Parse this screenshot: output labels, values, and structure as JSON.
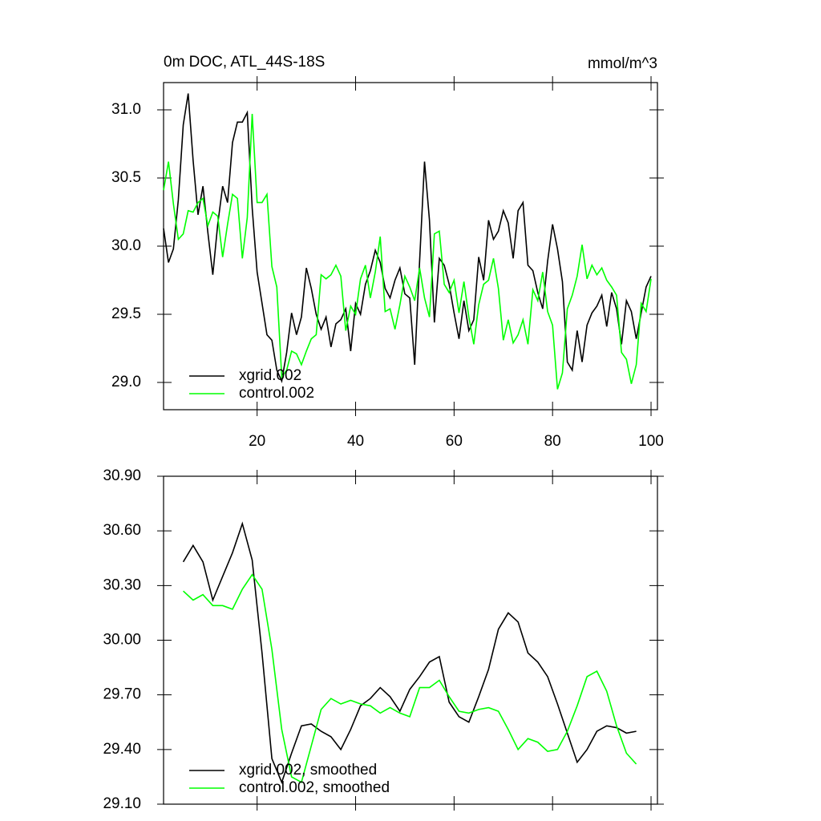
{
  "chart_data": [
    {
      "type": "line",
      "title": "0m DOC, ATL_44S-18S",
      "units": "mmol/m^3",
      "x": [
        1,
        2,
        3,
        4,
        5,
        6,
        7,
        8,
        9,
        10,
        11,
        12,
        13,
        14,
        15,
        16,
        17,
        18,
        19,
        20,
        21,
        22,
        23,
        24,
        25,
        26,
        27,
        28,
        29,
        30,
        31,
        32,
        33,
        34,
        35,
        36,
        37,
        38,
        39,
        40,
        41,
        42,
        43,
        44,
        45,
        46,
        47,
        48,
        49,
        50,
        51,
        52,
        53,
        54,
        55,
        56,
        57,
        58,
        59,
        60,
        61,
        62,
        63,
        64,
        65,
        66,
        67,
        68,
        69,
        70,
        71,
        72,
        73,
        74,
        75,
        76,
        77,
        78,
        79,
        80,
        81,
        82,
        83,
        84,
        85,
        86,
        87,
        88,
        89,
        90,
        91,
        92,
        93,
        94,
        95,
        96,
        97,
        98,
        99,
        100
      ],
      "series": [
        {
          "name": "xgrid.002",
          "color": "#000000",
          "values": [
            30.13,
            29.88,
            29.98,
            30.34,
            30.89,
            31.12,
            30.63,
            30.23,
            30.44,
            30.1,
            29.79,
            30.16,
            30.44,
            30.32,
            30.76,
            30.91,
            30.91,
            30.98,
            30.28,
            29.81,
            29.58,
            29.35,
            29.31,
            29.09,
            29.01,
            29.22,
            29.51,
            29.35,
            29.48,
            29.84,
            29.69,
            29.5,
            29.39,
            29.48,
            29.26,
            29.43,
            29.46,
            29.54,
            29.23,
            29.58,
            29.5,
            29.72,
            29.82,
            29.97,
            29.88,
            29.69,
            29.62,
            29.75,
            29.84,
            29.65,
            29.62,
            29.13,
            29.89,
            30.62,
            30.19,
            29.44,
            29.91,
            29.86,
            29.72,
            29.51,
            29.32,
            29.6,
            29.38,
            29.46,
            29.92,
            29.75,
            30.19,
            30.05,
            30.11,
            30.26,
            30.17,
            29.91,
            30.26,
            30.32,
            29.86,
            29.82,
            29.66,
            29.54,
            29.89,
            30.16,
            29.98,
            29.74,
            29.15,
            29.09,
            29.38,
            29.15,
            29.42,
            29.51,
            29.56,
            29.64,
            29.41,
            29.66,
            29.54,
            29.28,
            29.6,
            29.52,
            29.32,
            29.51,
            29.7,
            29.78
          ]
        },
        {
          "name": "control.002",
          "color": "#00ff00",
          "values": [
            30.41,
            30.62,
            30.31,
            30.05,
            30.09,
            30.26,
            30.25,
            30.32,
            30.35,
            30.15,
            30.25,
            30.22,
            29.92,
            30.16,
            30.38,
            30.35,
            29.91,
            30.21,
            30.97,
            30.32,
            30.32,
            30.38,
            29.85,
            29.7,
            29.04,
            29.09,
            29.23,
            29.21,
            29.13,
            29.23,
            29.32,
            29.35,
            29.79,
            29.76,
            29.79,
            29.86,
            29.78,
            29.38,
            29.56,
            29.5,
            29.76,
            29.86,
            29.62,
            29.81,
            30.07,
            29.52,
            29.54,
            29.39,
            29.57,
            29.78,
            29.7,
            29.6,
            29.84,
            29.62,
            29.48,
            30.09,
            30.11,
            29.72,
            29.66,
            29.75,
            29.51,
            29.74,
            29.48,
            29.28,
            29.57,
            29.72,
            29.75,
            29.91,
            29.69,
            29.31,
            29.46,
            29.29,
            29.35,
            29.46,
            29.28,
            29.68,
            29.6,
            29.81,
            29.52,
            29.42,
            28.95,
            29.07,
            29.54,
            29.64,
            29.78,
            30.01,
            29.76,
            29.86,
            29.79,
            29.84,
            29.75,
            29.7,
            29.64,
            29.22,
            29.17,
            28.99,
            29.13,
            29.58,
            29.52,
            29.76
          ]
        }
      ],
      "xlim": [
        1,
        101.3
      ],
      "xticks": [
        20,
        40,
        60,
        80,
        100
      ],
      "ylim": [
        28.8,
        31.2
      ],
      "yticks": [
        {
          "value": 29,
          "label": "29.0"
        },
        29.5,
        {
          "value": 30,
          "label": "30.0"
        },
        30.5,
        {
          "value": 31,
          "label": "31.0"
        }
      ],
      "legend": "lower left"
    },
    {
      "type": "line",
      "x": [
        5,
        7,
        9,
        11,
        13,
        15,
        17,
        19,
        21,
        23,
        25,
        27,
        29,
        31,
        33,
        35,
        37,
        39,
        41,
        43,
        45,
        47,
        49,
        51,
        53,
        55,
        57,
        59,
        61,
        63,
        65,
        67,
        69,
        71,
        73,
        75,
        77,
        79,
        81,
        83,
        85,
        87,
        89,
        91,
        93,
        95,
        97
      ],
      "series": [
        {
          "name": "xgrid.002, smoothed",
          "color": "#000000",
          "values": [
            30.43,
            30.52,
            30.43,
            30.22,
            30.35,
            30.48,
            30.64,
            30.44,
            29.93,
            29.35,
            29.22,
            29.38,
            29.53,
            29.54,
            29.5,
            29.47,
            29.4,
            29.51,
            29.64,
            29.68,
            29.74,
            29.69,
            29.61,
            29.73,
            29.8,
            29.88,
            29.91,
            29.66,
            29.58,
            29.55,
            29.69,
            29.84,
            30.06,
            30.15,
            30.1,
            29.93,
            29.88,
            29.8,
            29.65,
            29.49,
            29.33,
            29.4,
            29.5,
            29.53,
            29.52,
            29.49,
            29.5
          ]
        },
        {
          "name": "control.002, smoothed",
          "color": "#00ff00",
          "values": [
            30.27,
            30.22,
            30.25,
            30.19,
            30.19,
            30.17,
            30.28,
            30.36,
            30.28,
            29.95,
            29.51,
            29.25,
            29.22,
            29.42,
            29.62,
            29.68,
            29.65,
            29.67,
            29.65,
            29.64,
            29.6,
            29.63,
            29.6,
            29.58,
            29.74,
            29.74,
            29.78,
            29.69,
            29.61,
            29.6,
            29.62,
            29.63,
            29.61,
            29.51,
            29.4,
            29.46,
            29.44,
            29.39,
            29.4,
            29.5,
            29.64,
            29.8,
            29.83,
            29.72,
            29.53,
            29.38,
            29.32
          ]
        }
      ],
      "xlim": [
        1,
        101.3
      ],
      "xticks": [
        20,
        40,
        60,
        80,
        100
      ],
      "ylim": [
        29.1,
        30.9
      ],
      "yticks": [
        {
          "value": 29.1,
          "label": "29.10"
        },
        {
          "value": 29.4,
          "label": "29.40"
        },
        {
          "value": 29.7,
          "label": "29.70"
        },
        {
          "value": 30,
          "label": "30.00"
        },
        {
          "value": 30.3,
          "label": "30.30"
        },
        {
          "value": 30.6,
          "label": "30.60"
        },
        {
          "value": 30.9,
          "label": "30.90"
        }
      ],
      "legend": "lower left"
    }
  ]
}
